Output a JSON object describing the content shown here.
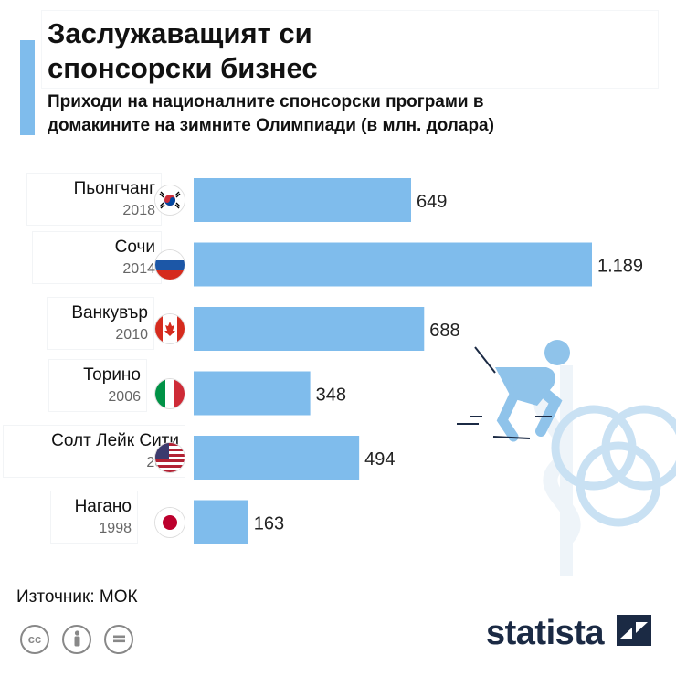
{
  "title_line1": "Заслужаващият си",
  "title_line2": "спонсорски бизнес",
  "subtitle_line1": "Приходи на националните спонсорски програми в",
  "subtitle_line2": "домакините на зимните Олимпиади (в млн. долара)",
  "source": "Източник: МОК",
  "brand": "statista",
  "colors": {
    "bar": "#7fbcec",
    "accent": "#7fbcec",
    "brand": "#1b2a44"
  },
  "chart_data": {
    "type": "bar",
    "orientation": "horizontal",
    "title": "Заслужаващият си спонсорски бизнес",
    "subtitle": "Приходи на националните спонсорски програми в домакините на зимните Олимпиади (в млн. долара)",
    "categories": [
      "Пьонгчанг",
      "Сочи",
      "Ванкувър",
      "Торино",
      "Солт Лейк Сити",
      "Нагано"
    ],
    "years": [
      "2018",
      "2014",
      "2010",
      "2006",
      "2002",
      "1998"
    ],
    "flags": [
      "south-korea-flag-icon",
      "russia-flag-icon",
      "canada-flag-icon",
      "italy-flag-icon",
      "usa-flag-icon",
      "japan-flag-icon"
    ],
    "values": [
      649,
      1189,
      688,
      348,
      494,
      163
    ],
    "value_labels": [
      "649",
      "1.189",
      "688",
      "348",
      "494",
      "163"
    ],
    "xlim": [
      0,
      1189
    ],
    "grid": false
  }
}
